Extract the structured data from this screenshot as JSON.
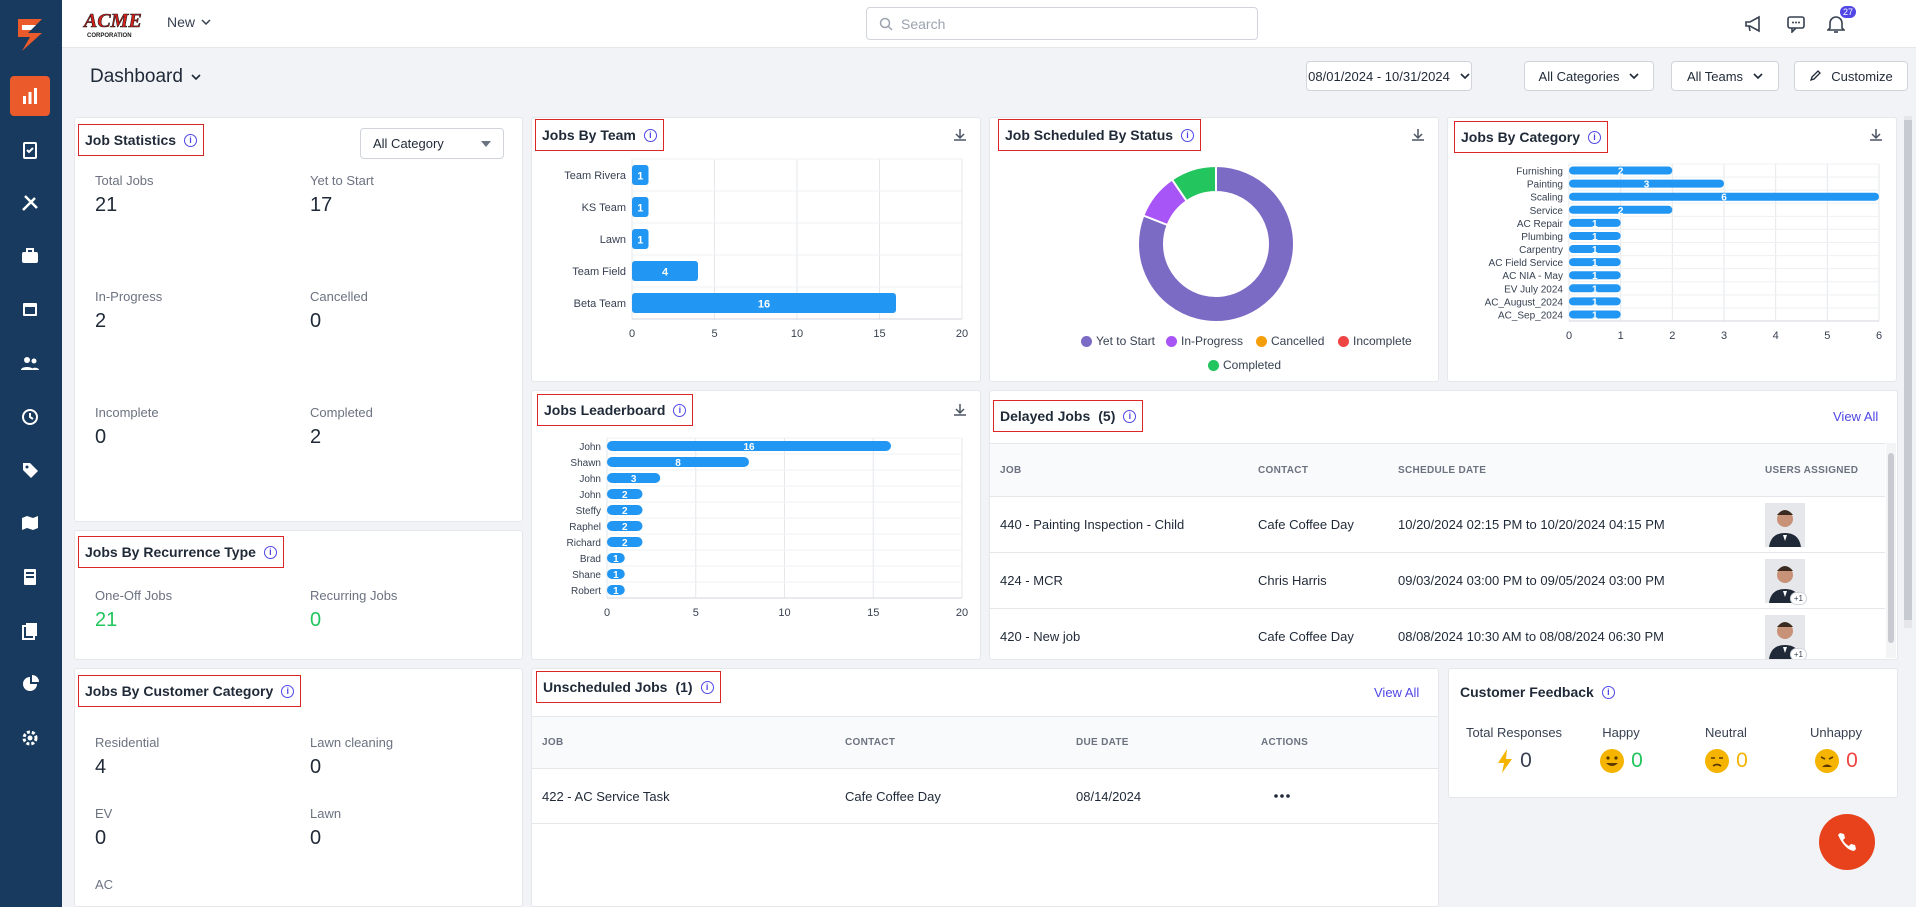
{
  "header": {
    "new_label": "New",
    "search_placeholder": "Search",
    "notification_count": "27"
  },
  "subheader": {
    "title": "Dashboard",
    "date_range": "08/01/2024 - 10/31/2024",
    "categories": "All Categories",
    "teams": "All Teams",
    "customize": "Customize"
  },
  "job_statistics": {
    "title": "Job Statistics",
    "filter": "All Category",
    "stats": [
      {
        "label": "Total Jobs",
        "value": "21"
      },
      {
        "label": "Yet to Start",
        "value": "17"
      },
      {
        "label": "In-Progress",
        "value": "2"
      },
      {
        "label": "Cancelled",
        "value": "0"
      },
      {
        "label": "Incomplete",
        "value": "0"
      },
      {
        "label": "Completed",
        "value": "2"
      }
    ]
  },
  "recurrence": {
    "title": "Jobs By Recurrence Type",
    "items": [
      {
        "label": "One-Off Jobs",
        "value": "21"
      },
      {
        "label": "Recurring Jobs",
        "value": "0"
      }
    ]
  },
  "customer_category": {
    "title": "Jobs By Customer Category",
    "items": [
      {
        "label": "Residential",
        "value": "4"
      },
      {
        "label": "Lawn cleaning",
        "value": "0"
      },
      {
        "label": "EV",
        "value": "0"
      },
      {
        "label": "Lawn",
        "value": "0"
      },
      {
        "label": "AC",
        "value": ""
      }
    ]
  },
  "jobs_by_team": {
    "title": "Jobs By Team"
  },
  "job_status": {
    "title": "Job Scheduled By Status"
  },
  "jobs_by_category": {
    "title": "Jobs By Category"
  },
  "leaderboard": {
    "title": "Jobs Leaderboard"
  },
  "delayed": {
    "title": "Delayed Jobs",
    "count": "(5)",
    "view_all": "View All",
    "headers": [
      "JOB",
      "CONTACT",
      "SCHEDULE DATE",
      "USERS ASSIGNED"
    ],
    "rows": [
      {
        "job": "440 - Painting Inspection - Child",
        "contact": "Cafe Coffee Day",
        "schedule": "10/20/2024 02:15 PM to 10/20/2024 04:15 PM",
        "extra": ""
      },
      {
        "job": "424 - MCR",
        "contact": "Chris Harris",
        "schedule": "09/03/2024 03:00 PM to 09/05/2024 03:00 PM",
        "extra": "+1"
      },
      {
        "job": "420 - New job",
        "contact": "Cafe Coffee Day",
        "schedule": "08/08/2024 10:30 AM to 08/08/2024 06:30 PM",
        "extra": "+1"
      }
    ]
  },
  "unscheduled": {
    "title": "Unscheduled Jobs",
    "count": "(1)",
    "view_all": "View All",
    "headers": [
      "JOB",
      "CONTACT",
      "DUE DATE",
      "ACTIONS"
    ],
    "rows": [
      {
        "job": "422 - AC Service Task",
        "contact": "Cafe Coffee Day",
        "due": "08/14/2024"
      }
    ]
  },
  "feedback": {
    "title": "Customer Feedback",
    "cols": [
      {
        "label": "Total Responses",
        "value": "0"
      },
      {
        "label": "Happy",
        "value": "0"
      },
      {
        "label": "Neutral",
        "value": "0"
      },
      {
        "label": "Unhappy",
        "value": "0"
      }
    ]
  },
  "colors": {
    "accent": "#4f46e5",
    "bar": "#2196f3",
    "green": "#22c55e",
    "orange": "#f59e0b",
    "red": "#ef4444",
    "purple": "#7c6bc4",
    "violet": "#a855f7"
  },
  "chart_data": [
    {
      "type": "bar",
      "id": "team",
      "orientation": "horizontal",
      "categories": [
        "Team Rivera",
        "KS Team",
        "Lawn",
        "Team Field",
        "Beta Team"
      ],
      "values": [
        1,
        1,
        1,
        4,
        16
      ],
      "xlim": [
        0,
        20
      ],
      "xticks": [
        0,
        5,
        10,
        15,
        20
      ]
    },
    {
      "type": "pie",
      "id": "status",
      "legend": [
        "Yet to Start",
        "In-Progress",
        "Cancelled",
        "Incomplete",
        "Completed"
      ],
      "values": [
        17,
        2,
        0,
        0,
        2
      ]
    },
    {
      "type": "bar",
      "id": "category",
      "orientation": "horizontal",
      "categories": [
        "Furnishing",
        "Painting",
        "Scaling",
        "Service",
        "AC Repair",
        "Plumbing",
        "Carpentry",
        "AC Field Service",
        "AC NIA - May",
        "EV July 2024",
        "AC_August_2024",
        "AC_Sep_2024"
      ],
      "values": [
        2,
        3,
        6,
        2,
        1,
        1,
        1,
        1,
        1,
        1,
        1,
        1
      ],
      "xlim": [
        0,
        6
      ],
      "xticks": [
        0,
        1,
        2,
        3,
        4,
        5,
        6
      ]
    },
    {
      "type": "bar",
      "id": "leaderboard",
      "orientation": "horizontal",
      "categories": [
        "John",
        "Shawn",
        "John",
        "John",
        "Steffy",
        "Raphel",
        "Richard",
        "Brad",
        "Shane",
        "Robert"
      ],
      "values": [
        16,
        8,
        3,
        2,
        2,
        2,
        2,
        1,
        1,
        1
      ],
      "xlim": [
        0,
        20
      ],
      "xticks": [
        0,
        5,
        10,
        15,
        20
      ]
    }
  ]
}
